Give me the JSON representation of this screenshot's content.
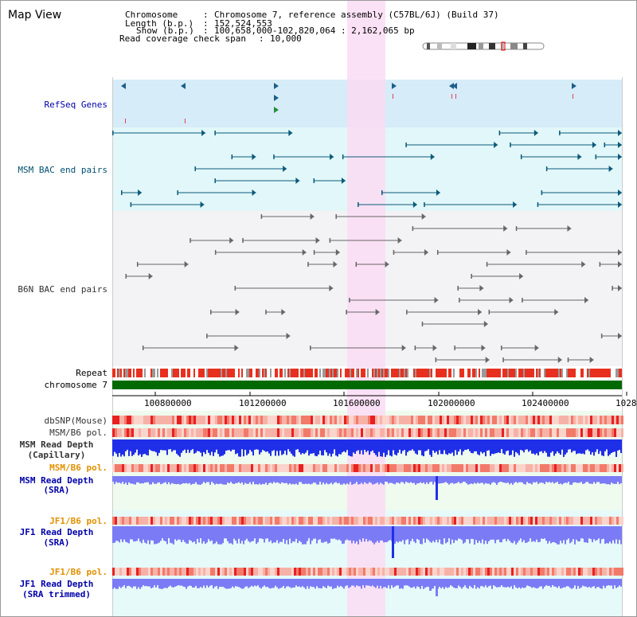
{
  "title": "Map View",
  "info": {
    "chromosome_label": "Chromosome",
    "chromosome_value": "Chromosome 7, reference assembly (C57BL/6J) (Build 37)",
    "length_label": "Length (b.p.)",
    "length_value": "152,524,553",
    "show_label": "Show (b.p.)",
    "show_value": "100,658,000-102,820,064 : 2,162,065 bp",
    "coverage_label": "Read coverage check span",
    "coverage_value": "10,000"
  },
  "tracks": {
    "refseq": "RefSeq Genes",
    "msm_bac": "MSM BAC end pairs",
    "b6n_bac": "B6N BAC end pairs",
    "repeat": "Repeat",
    "chromosome": "chromosome 7",
    "dbsnp": "dbSNP(Mouse)",
    "msm_b6_pol_1": "MSM/B6 pol.",
    "msm_depth_cap_1": "MSM Read Depth",
    "msm_depth_cap_2": "(Capillary)",
    "msm_b6_pol_2": "MSM/B6 pol.",
    "msm_depth_sra_1": "MSM Read Depth",
    "msm_depth_sra_2": "(SRA)",
    "jf1_b6_pol_1": "JF1/B6 pol.",
    "jf1_depth_sra_1": "JF1 Read Depth",
    "jf1_depth_sra_2": "(SRA)",
    "jf1_b6_pol_2": "JF1/B6 pol.",
    "jf1_depth_trim_1": "JF1 Read Depth",
    "jf1_depth_trim_2": "(SRA trimmed)"
  },
  "ruler": [
    "100800000",
    "101200000",
    "101600000",
    "102000000",
    "102400000",
    "1028"
  ],
  "colors": {
    "refseq_bg": "#d6ecf8",
    "msm_bac_bg": "#e2f7f9",
    "b6n_bg": "#f3f3f6",
    "highlight": "#fadcf3",
    "repeat_red": "#e8301e",
    "chromosome_green": "#006a00",
    "depth_blue": "#1f2fe8",
    "depth_light_blue": "#7b7bf5",
    "label_blue": "#0000aa",
    "label_teal": "#004f70",
    "label_orange": "#e09000",
    "label_gray": "#333333"
  }
}
